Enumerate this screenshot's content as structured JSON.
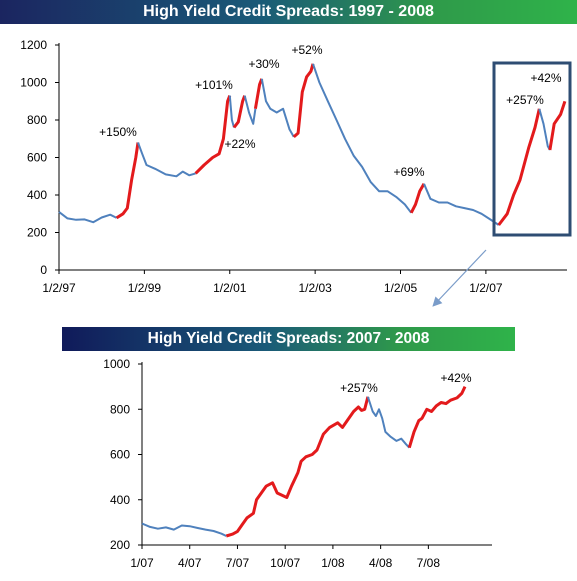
{
  "colors": {
    "normal": "#4f81bd",
    "highlight": "#e31a1c",
    "box": "#2e4d73",
    "arrow": "#7a9cc9"
  },
  "chart_data": [
    {
      "type": "line",
      "title": "High Yield Credit Spreads: 1997 - 2008",
      "xlabel": "",
      "ylabel": "",
      "ylim": [
        0,
        1200
      ],
      "yticks": [
        0,
        200,
        400,
        600,
        800,
        1000,
        1200
      ],
      "xlim": [
        1997.0,
        2008.9
      ],
      "xticks": [
        {
          "x": 1997.0,
          "label": "1/2/97"
        },
        {
          "x": 1999.0,
          "label": "1/2/99"
        },
        {
          "x": 2001.0,
          "label": "1/2/01"
        },
        {
          "x": 2003.0,
          "label": "1/2/03"
        },
        {
          "x": 2005.0,
          "label": "1/2/05"
        },
        {
          "x": 2007.0,
          "label": "1/2/07"
        }
      ],
      "series": [
        {
          "points": [
            [
              1997.0,
              310
            ],
            [
              1997.2,
              275
            ],
            [
              1997.4,
              268
            ],
            [
              1997.6,
              270
            ],
            [
              1997.8,
              255
            ],
            [
              1998.0,
              280
            ],
            [
              1998.2,
              295
            ],
            [
              1998.35,
              278
            ]
          ]
        },
        {
          "points": [
            [
              1998.35,
              278
            ],
            [
              1998.5,
              300
            ],
            [
              1998.6,
              330
            ],
            [
              1998.7,
              480
            ],
            [
              1998.8,
              600
            ],
            [
              1998.85,
              680
            ]
          ]
        },
        {
          "points": [
            [
              1998.85,
              680
            ],
            [
              1998.95,
              620
            ],
            [
              1999.05,
              560
            ],
            [
              1999.25,
              540
            ],
            [
              1999.5,
              510
            ],
            [
              1999.75,
              500
            ],
            [
              1999.9,
              525
            ],
            [
              2000.05,
              505
            ],
            [
              2000.2,
              515
            ]
          ]
        },
        {
          "points": [
            [
              2000.2,
              515
            ],
            [
              2000.4,
              560
            ],
            [
              2000.6,
              600
            ],
            [
              2000.75,
              620
            ],
            [
              2000.85,
              700
            ],
            [
              2000.95,
              900
            ],
            [
              2001.0,
              930
            ]
          ]
        },
        {
          "points": [
            [
              2001.0,
              930
            ],
            [
              2001.05,
              800
            ],
            [
              2001.1,
              760
            ]
          ]
        },
        {
          "points": [
            [
              2001.1,
              760
            ],
            [
              2001.2,
              790
            ],
            [
              2001.3,
              900
            ],
            [
              2001.35,
              930
            ]
          ]
        },
        {
          "points": [
            [
              2001.35,
              930
            ],
            [
              2001.45,
              840
            ],
            [
              2001.55,
              780
            ],
            [
              2001.6,
              860
            ]
          ]
        },
        {
          "points": [
            [
              2001.6,
              860
            ],
            [
              2001.7,
              990
            ],
            [
              2001.75,
              1020
            ]
          ]
        },
        {
          "points": [
            [
              2001.75,
              1020
            ],
            [
              2001.85,
              900
            ],
            [
              2001.95,
              860
            ],
            [
              2002.1,
              840
            ],
            [
              2002.25,
              860
            ],
            [
              2002.4,
              750
            ],
            [
              2002.5,
              710
            ]
          ]
        },
        {
          "points": [
            [
              2002.5,
              710
            ],
            [
              2002.6,
              730
            ],
            [
              2002.7,
              950
            ],
            [
              2002.8,
              1030
            ],
            [
              2002.9,
              1060
            ],
            [
              2002.95,
              1100
            ]
          ]
        },
        {
          "points": [
            [
              2002.95,
              1100
            ],
            [
              2003.1,
              1000
            ],
            [
              2003.3,
              900
            ],
            [
              2003.5,
              800
            ],
            [
              2003.7,
              700
            ],
            [
              2003.9,
              610
            ],
            [
              2004.1,
              550
            ],
            [
              2004.3,
              470
            ],
            [
              2004.5,
              420
            ],
            [
              2004.7,
              420
            ],
            [
              2004.9,
              390
            ],
            [
              2005.1,
              350
            ],
            [
              2005.25,
              305
            ]
          ]
        },
        {
          "points": [
            [
              2005.25,
              305
            ],
            [
              2005.35,
              350
            ],
            [
              2005.45,
              420
            ],
            [
              2005.55,
              460
            ]
          ]
        },
        {
          "points": [
            [
              2005.55,
              460
            ],
            [
              2005.7,
              380
            ],
            [
              2005.9,
              360
            ],
            [
              2006.1,
              360
            ],
            [
              2006.3,
              340
            ],
            [
              2006.5,
              330
            ],
            [
              2006.7,
              320
            ],
            [
              2006.9,
              300
            ],
            [
              2007.1,
              270
            ],
            [
              2007.3,
              240
            ]
          ]
        },
        {
          "points": [
            [
              2007.3,
              240
            ],
            [
              2007.5,
              300
            ],
            [
              2007.65,
              400
            ],
            [
              2007.8,
              480
            ],
            [
              2008.0,
              650
            ],
            [
              2008.15,
              760
            ],
            [
              2008.25,
              860
            ]
          ]
        },
        {
          "points": [
            [
              2008.25,
              860
            ],
            [
              2008.35,
              780
            ],
            [
              2008.45,
              660
            ],
            [
              2008.5,
              640
            ]
          ]
        },
        {
          "points": [
            [
              2008.5,
              640
            ],
            [
              2008.6,
              780
            ],
            [
              2008.75,
              830
            ],
            [
              2008.85,
              900
            ]
          ]
        }
      ],
      "annotations": [
        "+150%",
        "+101%",
        "+22%",
        "+30%",
        "+52%",
        "+69%",
        "+257%",
        "+42%"
      ]
    },
    {
      "type": "line",
      "title": "High Yield Credit Spreads: 2007 - 2008",
      "xlabel": "",
      "ylabel": "",
      "ylim": [
        200,
        1000
      ],
      "yticks": [
        200,
        400,
        600,
        800,
        1000
      ],
      "xlim": [
        0,
        22
      ],
      "xticks": [
        {
          "x": 0,
          "label": "1/07"
        },
        {
          "x": 3,
          "label": "4/07"
        },
        {
          "x": 6,
          "label": "7/07"
        },
        {
          "x": 9,
          "label": "10/07"
        },
        {
          "x": 12,
          "label": "1/08"
        },
        {
          "x": 15,
          "label": "4/08"
        },
        {
          "x": 18,
          "label": "7/08"
        }
      ],
      "series": [
        {
          "points": [
            [
              0,
              295
            ],
            [
              0.5,
              280
            ],
            [
              1,
              272
            ],
            [
              1.5,
              278
            ],
            [
              2,
              268
            ],
            [
              2.5,
              286
            ],
            [
              3,
              283
            ],
            [
              3.5,
              275
            ],
            [
              4,
              268
            ],
            [
              4.5,
              262
            ],
            [
              5,
              250
            ],
            [
              5.3,
              240
            ]
          ]
        },
        {
          "points": [
            [
              5.3,
              240
            ],
            [
              5.7,
              248
            ],
            [
              6,
              260
            ],
            [
              6.3,
              290
            ],
            [
              6.6,
              320
            ],
            [
              7,
              340
            ],
            [
              7.2,
              400
            ],
            [
              7.5,
              430
            ],
            [
              7.8,
              460
            ],
            [
              8.2,
              475
            ],
            [
              8.5,
              430
            ],
            [
              9.1,
              410
            ],
            [
              9.4,
              460
            ],
            [
              9.8,
              520
            ],
            [
              10,
              570
            ],
            [
              10.3,
              590
            ],
            [
              10.7,
              600
            ],
            [
              11,
              620
            ],
            [
              11.4,
              690
            ],
            [
              11.8,
              720
            ],
            [
              12.3,
              740
            ],
            [
              12.6,
              720
            ],
            [
              12.9,
              750
            ],
            [
              13.3,
              790
            ],
            [
              13.6,
              810
            ],
            [
              13.8,
              795
            ],
            [
              14.0,
              800
            ],
            [
              14.2,
              855
            ]
          ]
        },
        {
          "points": [
            [
              14.2,
              855
            ],
            [
              14.5,
              790
            ],
            [
              14.7,
              770
            ],
            [
              14.9,
              800
            ],
            [
              15.1,
              760
            ],
            [
              15.3,
              700
            ],
            [
              15.6,
              680
            ],
            [
              16,
              660
            ],
            [
              16.3,
              670
            ],
            [
              16.6,
              645
            ],
            [
              16.8,
              630
            ]
          ]
        },
        {
          "points": [
            [
              16.8,
              630
            ],
            [
              17.1,
              700
            ],
            [
              17.4,
              750
            ],
            [
              17.6,
              760
            ],
            [
              17.9,
              800
            ],
            [
              18.2,
              790
            ],
            [
              18.5,
              815
            ],
            [
              18.8,
              830
            ],
            [
              19.1,
              825
            ],
            [
              19.4,
              840
            ],
            [
              19.8,
              850
            ],
            [
              20.1,
              870
            ],
            [
              20.3,
              900
            ]
          ]
        }
      ],
      "annotations": [
        "+257%",
        "+42%"
      ]
    }
  ]
}
